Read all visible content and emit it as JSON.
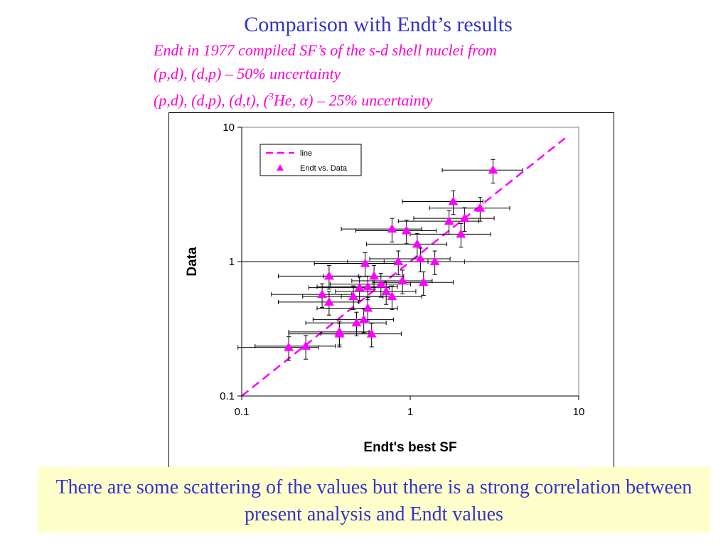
{
  "slide": {
    "title": "Comparison with Endt’s results",
    "subtitle_lines": [
      "Endt in 1977 compiled SF’s of the s-d shell nuclei from",
      "(p,d), (d,p) – 50%  uncertainty",
      "(p,d), (d,p), (d,t), (",
      "3",
      "He, ",
      "α",
      ") – 25% uncertainty"
    ],
    "note": "There are some scattering of the values but there is a strong correlation between present analysis and Endt values"
  },
  "colors": {
    "title": "#3333cc",
    "subtitle": "#ff00cc",
    "series": "#ff00ff",
    "note_bg": "#ffffcc"
  },
  "chart_data": {
    "type": "scatter",
    "title": "",
    "xlabel": "Endt's best SF",
    "ylabel": "Data",
    "x_scale": "log",
    "y_scale": "log",
    "xlim": [
      0.1,
      10
    ],
    "ylim": [
      0.1,
      10
    ],
    "x_ticks": [
      "0.1",
      "1",
      "10"
    ],
    "y_ticks": [
      "0.1",
      "1",
      "10"
    ],
    "gridlines": "horizontal at 1",
    "legend_position": "top-left inside",
    "legend": [
      "line",
      "Endt vs. Data"
    ],
    "line": {
      "name": "line",
      "style": "dashed",
      "points": [
        [
          0.1,
          0.1
        ],
        [
          8.3,
          8.3
        ]
      ]
    },
    "series": [
      {
        "name": "Endt vs. Data",
        "marker": "triangle",
        "error_fraction_x": 0.5,
        "error_fraction_y": 0.2,
        "points": [
          [
            0.19,
            0.23
          ],
          [
            0.24,
            0.235
          ],
          [
            0.3,
            0.57
          ],
          [
            0.33,
            0.5
          ],
          [
            0.33,
            0.78
          ],
          [
            0.38,
            0.3
          ],
          [
            0.38,
            0.29
          ],
          [
            0.46,
            0.55
          ],
          [
            0.48,
            0.35
          ],
          [
            0.5,
            0.64
          ],
          [
            0.53,
            0.37
          ],
          [
            0.54,
            0.97
          ],
          [
            0.56,
            0.65
          ],
          [
            0.56,
            0.45
          ],
          [
            0.59,
            0.29
          ],
          [
            0.61,
            0.78
          ],
          [
            0.67,
            0.68
          ],
          [
            0.72,
            0.6
          ],
          [
            0.78,
            1.75
          ],
          [
            0.78,
            0.55
          ],
          [
            0.85,
            1.0
          ],
          [
            0.9,
            0.72
          ],
          [
            0.95,
            1.7
          ],
          [
            1.1,
            1.35
          ],
          [
            1.15,
            1.05
          ],
          [
            1.2,
            0.7
          ],
          [
            1.4,
            1.0
          ],
          [
            1.7,
            2.0
          ],
          [
            1.8,
            2.8
          ],
          [
            2.0,
            1.6
          ],
          [
            2.1,
            2.1
          ],
          [
            2.6,
            2.5
          ],
          [
            3.1,
            4.8
          ]
        ]
      }
    ]
  }
}
